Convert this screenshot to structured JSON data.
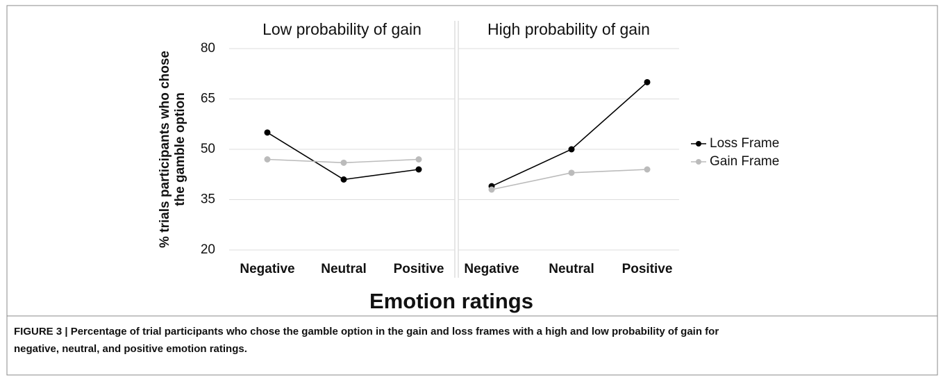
{
  "figure": {
    "y_label": [
      "% trials participants who chose",
      "the gamble option"
    ],
    "x_label": "Emotion ratings",
    "caption": [
      "FIGURE 3 | Percentage of trial participants who chose the gamble option in the gain and loss frames with a high and low probability of gain for",
      "negative, neutral, and positive emotion ratings."
    ]
  },
  "chart_data": [
    {
      "type": "line",
      "title": "Low probability of gain",
      "categories": [
        "Negative",
        "Neutral",
        "Positive"
      ],
      "series": [
        {
          "name": "Loss Frame",
          "color": "#000000",
          "values": [
            55,
            41,
            44
          ]
        },
        {
          "name": "Gain Frame",
          "color": "#bbbbbb",
          "values": [
            47,
            46,
            47
          ]
        }
      ],
      "ylim": [
        20,
        80
      ],
      "yticks": [
        20,
        35,
        50,
        65,
        80
      ],
      "grid": true,
      "legend": "right"
    },
    {
      "type": "line",
      "title": "High probability of gain",
      "categories": [
        "Negative",
        "Neutral",
        "Positive"
      ],
      "series": [
        {
          "name": "Loss Frame",
          "color": "#000000",
          "values": [
            39,
            50,
            70
          ]
        },
        {
          "name": "Gain Frame",
          "color": "#bbbbbb",
          "values": [
            38,
            43,
            44
          ]
        }
      ],
      "ylim": [
        20,
        80
      ],
      "yticks": [
        20,
        35,
        50,
        65,
        80
      ],
      "grid": true
    }
  ]
}
